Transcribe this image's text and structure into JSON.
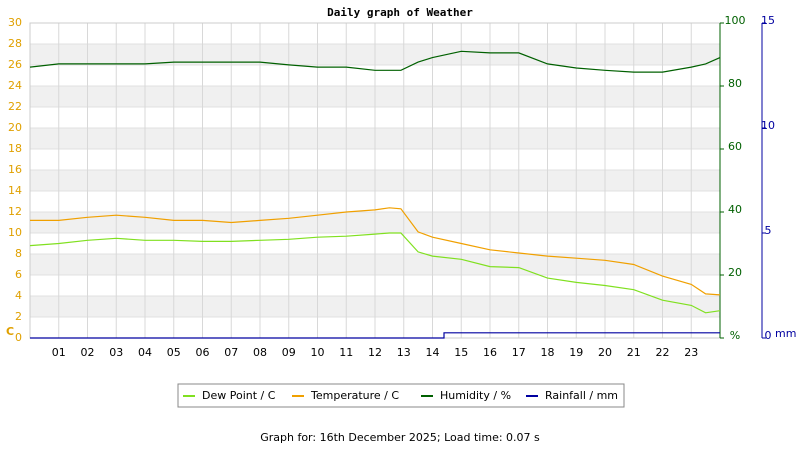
{
  "chart_data": {
    "type": "line",
    "title": "Daily graph of Weather",
    "x": [
      0,
      1,
      2,
      3,
      4,
      5,
      6,
      7,
      8,
      9,
      10,
      11,
      12,
      12.5,
      12.9,
      13.5,
      14,
      15,
      16,
      17,
      18,
      19,
      20,
      21,
      22,
      23,
      23.5,
      24
    ],
    "xlim": [
      0,
      24
    ],
    "xticks": [
      {
        "value": 1,
        "label": "01"
      },
      {
        "value": 2,
        "label": "02"
      },
      {
        "value": 3,
        "label": "03"
      },
      {
        "value": 4,
        "label": "04"
      },
      {
        "value": 5,
        "label": "05"
      },
      {
        "value": 6,
        "label": "06"
      },
      {
        "value": 7,
        "label": "07"
      },
      {
        "value": 8,
        "label": "08"
      },
      {
        "value": 9,
        "label": "09"
      },
      10,
      11,
      12,
      13,
      14,
      15,
      16,
      17,
      18,
      19,
      20,
      21,
      22,
      23
    ],
    "ylim": [
      0,
      30
    ],
    "yticks": [
      0,
      2,
      4,
      6,
      8,
      10,
      12,
      14,
      16,
      18,
      20,
      22,
      24,
      26,
      28,
      30
    ],
    "y_unit": "C",
    "y2lim": [
      0,
      100
    ],
    "y2ticks": [
      {
        "value": 0,
        "label": "%"
      },
      20,
      40,
      60,
      80,
      100
    ],
    "y3lim": [
      0,
      15
    ],
    "y3ticks": [
      0,
      5,
      10,
      15
    ],
    "y3_unit": "mm",
    "series": [
      {
        "name": "Dew Point / C",
        "color": "#80e020",
        "axis": "y",
        "values": [
          8.8,
          9.0,
          9.3,
          9.5,
          9.3,
          9.3,
          9.2,
          9.2,
          9.3,
          9.4,
          9.6,
          9.7,
          9.9,
          10.0,
          10.0,
          8.2,
          7.8,
          7.5,
          6.8,
          6.7,
          5.7,
          5.3,
          5.0,
          4.6,
          3.6,
          3.1,
          2.4,
          2.6
        ]
      },
      {
        "name": "Temperature / C",
        "color": "#f0a000",
        "axis": "y",
        "values": [
          11.2,
          11.2,
          11.5,
          11.7,
          11.5,
          11.2,
          11.2,
          11.0,
          11.2,
          11.4,
          11.7,
          12.0,
          12.2,
          12.4,
          12.3,
          10.1,
          9.6,
          9.0,
          8.4,
          8.1,
          7.8,
          7.6,
          7.4,
          7.0,
          5.9,
          5.1,
          4.2,
          4.1
        ]
      },
      {
        "name": "Humidity / %",
        "color": "#006000",
        "axis": "y2",
        "values": [
          86,
          87,
          87,
          87,
          87,
          87.6,
          87.6,
          87.6,
          87.6,
          86.7,
          86,
          86,
          85,
          85,
          85,
          87.6,
          89,
          91,
          90.5,
          90.5,
          87,
          85.7,
          85,
          84.4,
          84.4,
          86,
          87,
          89
        ]
      },
      {
        "name": "Rainfall / mm",
        "color": "#0000a0",
        "axis": "y3",
        "x": [
          0,
          14.4,
          14.4,
          24
        ],
        "values": [
          0,
          0,
          0.25,
          0.25
        ]
      }
    ],
    "footer": "Graph for: 16th December 2025; Load time: 0.07 s"
  }
}
